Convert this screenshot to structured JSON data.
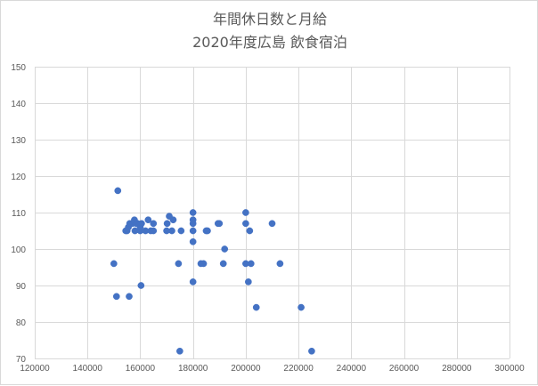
{
  "chart_data": {
    "type": "scatter",
    "title": [
      "年間休日数と月給",
      "2020年度広島 飲食宿泊"
    ],
    "xlim": [
      120000,
      300000
    ],
    "ylim": [
      70,
      150
    ],
    "x_ticks": [
      120000,
      140000,
      160000,
      180000,
      200000,
      220000,
      240000,
      260000,
      280000,
      300000
    ],
    "y_ticks": [
      70,
      80,
      90,
      100,
      110,
      120,
      130,
      140,
      150
    ],
    "grid": true,
    "legend": "none",
    "marker_color": "#4472c4",
    "grid_color": "#d9d9d9",
    "points": [
      [
        150000,
        96
      ],
      [
        151000,
        87
      ],
      [
        151500,
        116
      ],
      [
        154500,
        105
      ],
      [
        155000,
        105
      ],
      [
        155500,
        106
      ],
      [
        155800,
        87
      ],
      [
        156000,
        107
      ],
      [
        157000,
        107
      ],
      [
        157800,
        108
      ],
      [
        158000,
        105
      ],
      [
        158500,
        107
      ],
      [
        159000,
        107
      ],
      [
        160000,
        106
      ],
      [
        160000,
        105
      ],
      [
        160300,
        90
      ],
      [
        160500,
        107
      ],
      [
        162000,
        105
      ],
      [
        163000,
        108
      ],
      [
        164000,
        105
      ],
      [
        165000,
        107
      ],
      [
        165000,
        105
      ],
      [
        170000,
        105
      ],
      [
        170200,
        107
      ],
      [
        171000,
        109
      ],
      [
        172000,
        105
      ],
      [
        172500,
        108
      ],
      [
        174500,
        96
      ],
      [
        175000,
        72
      ],
      [
        175500,
        105
      ],
      [
        180000,
        110
      ],
      [
        180000,
        108
      ],
      [
        180000,
        107
      ],
      [
        180000,
        105
      ],
      [
        180000,
        102
      ],
      [
        180000,
        91
      ],
      [
        183000,
        96
      ],
      [
        184000,
        96
      ],
      [
        185000,
        105
      ],
      [
        185500,
        105
      ],
      [
        189500,
        107
      ],
      [
        190000,
        107
      ],
      [
        191500,
        96
      ],
      [
        192000,
        100
      ],
      [
        200000,
        110
      ],
      [
        200000,
        107
      ],
      [
        200000,
        96
      ],
      [
        201000,
        91
      ],
      [
        201500,
        105
      ],
      [
        202000,
        96
      ],
      [
        204000,
        84
      ],
      [
        210000,
        107
      ],
      [
        213000,
        96
      ],
      [
        221000,
        84
      ],
      [
        225000,
        72
      ]
    ]
  }
}
